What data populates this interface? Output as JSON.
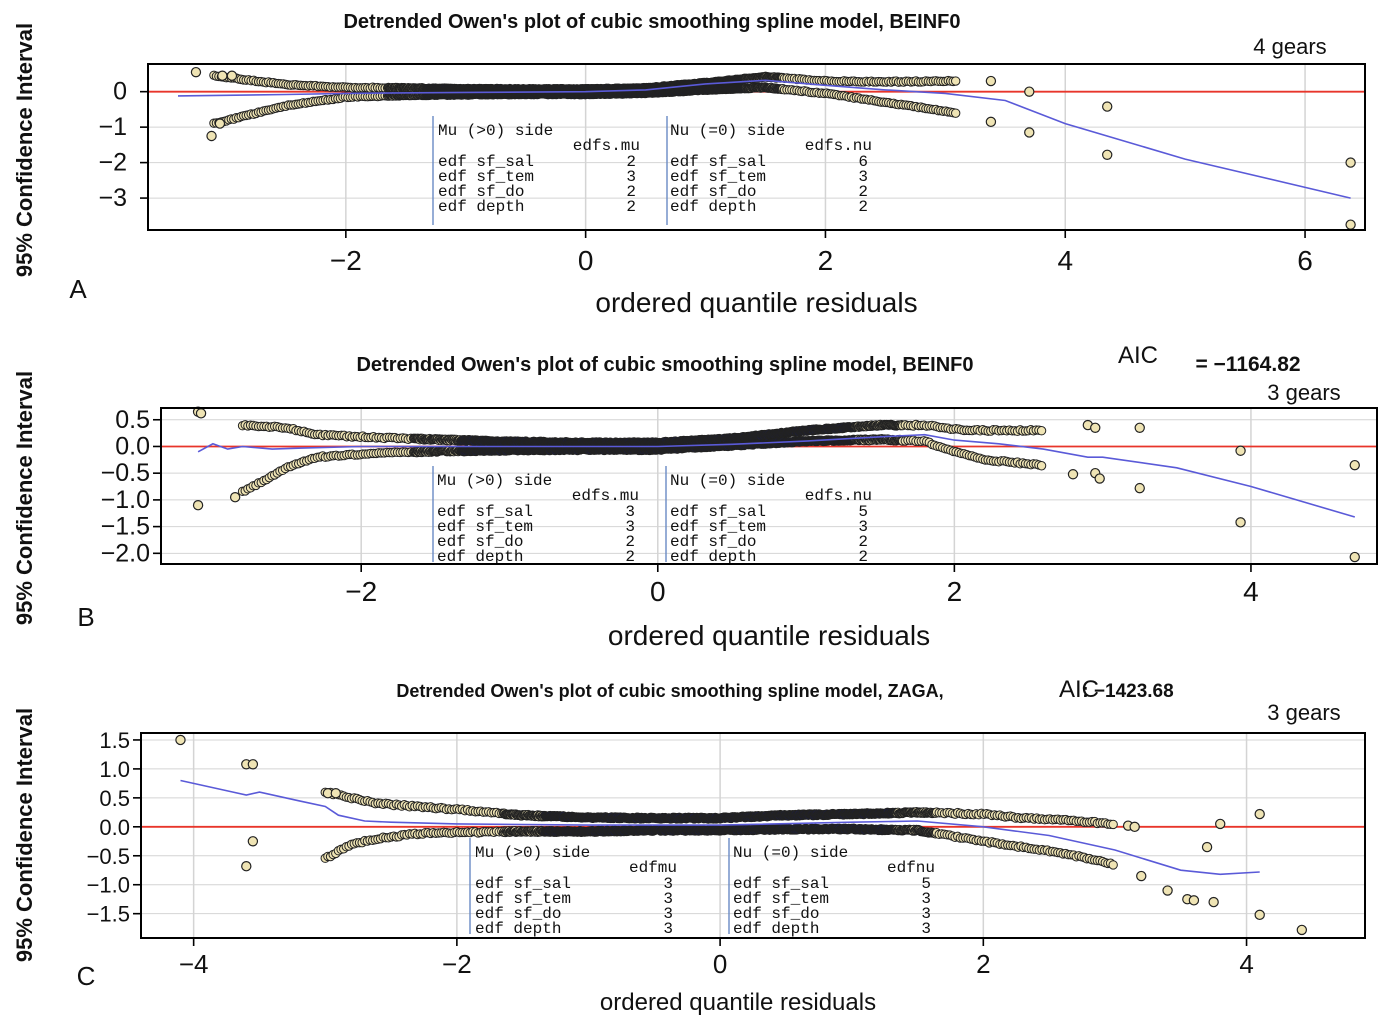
{
  "figure": {
    "ylabel": "95% Confidence Interval",
    "xlabel": "ordered quantile residuals"
  },
  "colors": {
    "zero_line": "#e8352a",
    "worm": "#5a5ad8",
    "dot_fill": "#efe4b4",
    "dot_dense": "#1c1e44",
    "grid": "#d4d4d4",
    "frame": "#000000"
  },
  "panels": [
    {
      "letter": "A",
      "title": "Detrended Owen's plot of cubic smoothing spline model, BEINF0",
      "aic_label": "",
      "aic_value": "",
      "gears": "4 gears",
      "mu_header": "Mu (>0) side",
      "mu_col": "edfs.mu",
      "nu_header": "Nu (=0) side",
      "nu_col": "edfs.nu",
      "table": [
        {
          "term": "edf  sf_sal",
          "mu": "2",
          "nu": "6"
        },
        {
          "term": "edf  sf_tem",
          "mu": "3",
          "nu": "3"
        },
        {
          "term": "edf  sf_do",
          "mu": "2",
          "nu": "2"
        },
        {
          "term": "edf  depth",
          "mu": "2",
          "nu": "2"
        }
      ]
    },
    {
      "letter": "B",
      "title": "Detrended Owen's plot of cubic smoothing spline model, BEINF0",
      "aic_label": "AIC",
      "aic_value": "= −1164.82",
      "gears": "3 gears",
      "mu_header": "Mu (>0) side",
      "mu_col": "edfs.mu",
      "nu_header": "Nu (=0) side",
      "nu_col": "edfs.nu",
      "table": [
        {
          "term": "edf  sf_sal",
          "mu": "3",
          "nu": "5"
        },
        {
          "term": "edf  sf_tem",
          "mu": "3",
          "nu": "3"
        },
        {
          "term": "edf  sf_do",
          "mu": "2",
          "nu": "2"
        },
        {
          "term": "edf  depth",
          "mu": "2",
          "nu": "2"
        }
      ]
    },
    {
      "letter": "C",
      "title": "Detrended Owen's plot of cubic smoothing spline model, ZAGA,",
      "aic_label": "AIC",
      "aic_value": ": −1423.68",
      "gears": "3 gears",
      "mu_header": "Mu (>0) side",
      "mu_col": "edfmu",
      "nu_header": "Nu (=0) side",
      "nu_col": "edfnu",
      "table": [
        {
          "term": "edf  sf_sal",
          "mu": "3",
          "nu": "5"
        },
        {
          "term": "edf  sf_tem",
          "mu": "3",
          "nu": "3"
        },
        {
          "term": "edf  sf_do",
          "mu": "3",
          "nu": "3"
        },
        {
          "term": "edf  depth",
          "mu": "3",
          "nu": "3"
        }
      ]
    }
  ],
  "chart_data": [
    {
      "type": "scatter",
      "panel": "A",
      "xlabel": "ordered quantile residuals",
      "ylabel": "95% Confidence Interval",
      "xlim": [
        -3.65,
        6.5
      ],
      "ylim": [
        -3.9,
        0.78
      ],
      "xticks": [
        -2,
        0,
        2,
        4,
        6
      ],
      "yticks": [
        0,
        -1,
        -2,
        -3
      ],
      "xtick_labels": [
        "−2",
        "0",
        "2",
        "4",
        "6"
      ],
      "ytick_labels": [
        "0",
        "−1",
        "−2",
        "−3"
      ],
      "grid": true,
      "reference_line_y": 0,
      "upper_band": [
        [
          -3.1,
          0.45
        ],
        [
          -2.5,
          0.2
        ],
        [
          -2,
          0.12
        ],
        [
          -1.5,
          0.1
        ],
        [
          -1,
          0.08
        ],
        [
          -0.5,
          0.07
        ],
        [
          0,
          0.07
        ],
        [
          0.5,
          0.1
        ],
        [
          1,
          0.25
        ],
        [
          1.5,
          0.42
        ],
        [
          2,
          0.3
        ],
        [
          2.5,
          0.28
        ],
        [
          3.1,
          0.3
        ]
      ],
      "lower_band": [
        [
          -3.1,
          -0.9
        ],
        [
          -2.5,
          -0.4
        ],
        [
          -2,
          -0.15
        ],
        [
          -1.5,
          -0.1
        ],
        [
          -1,
          -0.08
        ],
        [
          -0.5,
          -0.07
        ],
        [
          0,
          -0.07
        ],
        [
          0.5,
          -0.04
        ],
        [
          1,
          0.05
        ],
        [
          1.5,
          0.12
        ],
        [
          2,
          -0.05
        ],
        [
          2.5,
          -0.3
        ],
        [
          3.1,
          -0.6
        ]
      ],
      "points": [
        [
          -3.25,
          0.55
        ],
        [
          -3.12,
          -1.25
        ],
        [
          -3.05,
          -0.9
        ],
        [
          -3.03,
          0.45
        ],
        [
          -2.95,
          0.45
        ],
        [
          3.38,
          -0.85
        ],
        [
          3.38,
          0.3
        ],
        [
          3.7,
          0.0
        ],
        [
          3.7,
          -1.15
        ],
        [
          4.35,
          -0.42
        ],
        [
          4.35,
          -1.78
        ],
        [
          6.38,
          -2.0
        ],
        [
          6.38,
          -3.75
        ]
      ],
      "worm": [
        [
          -3.4,
          -0.12
        ],
        [
          -2.5,
          -0.08
        ],
        [
          -2,
          -0.05
        ],
        [
          -1,
          -0.02
        ],
        [
          0,
          0
        ],
        [
          0.5,
          0.05
        ],
        [
          1,
          0.22
        ],
        [
          1.5,
          0.32
        ],
        [
          2,
          0.18
        ],
        [
          2.5,
          0.05
        ],
        [
          3,
          -0.05
        ],
        [
          3.5,
          -0.25
        ],
        [
          4,
          -0.9
        ],
        [
          5,
          -1.9
        ],
        [
          6.38,
          -3.0
        ]
      ]
    },
    {
      "type": "scatter",
      "panel": "B",
      "xlabel": "ordered quantile residuals",
      "ylabel": "95% Confidence Interval",
      "xlim": [
        -3.35,
        4.85
      ],
      "ylim": [
        -2.2,
        0.72
      ],
      "xticks": [
        -2,
        0,
        2,
        4
      ],
      "yticks": [
        0.5,
        0.0,
        -0.5,
        -1.0,
        -1.5,
        -2.0
      ],
      "xtick_labels": [
        "−2",
        "0",
        "2",
        "4"
      ],
      "ytick_labels": [
        "0.5",
        "0.0",
        "−0.5",
        "−1.0",
        "−1.5",
        "−2.0"
      ],
      "grid": true,
      "reference_line_y": 0,
      "upper_band": [
        [
          -2.8,
          0.4
        ],
        [
          -2.5,
          0.35
        ],
        [
          -2.3,
          0.22
        ],
        [
          -2,
          0.18
        ],
        [
          -1.5,
          0.13
        ],
        [
          -1,
          0.09
        ],
        [
          -0.5,
          0.07
        ],
        [
          0,
          0.07
        ],
        [
          0.5,
          0.15
        ],
        [
          1,
          0.3
        ],
        [
          1.5,
          0.4
        ],
        [
          1.8,
          0.4
        ],
        [
          2,
          0.32
        ],
        [
          2.2,
          0.3
        ],
        [
          2.6,
          0.3
        ]
      ],
      "lower_band": [
        [
          -2.8,
          -0.85
        ],
        [
          -2.5,
          -0.4
        ],
        [
          -2.3,
          -0.2
        ],
        [
          -2,
          -0.14
        ],
        [
          -1.5,
          -0.09
        ],
        [
          -1,
          -0.07
        ],
        [
          -0.5,
          -0.06
        ],
        [
          0,
          -0.06
        ],
        [
          0.5,
          0.02
        ],
        [
          1,
          0.1
        ],
        [
          1.5,
          0.13
        ],
        [
          1.8,
          0.1
        ],
        [
          2,
          -0.1
        ],
        [
          2.2,
          -0.25
        ],
        [
          2.6,
          -0.35
        ]
      ],
      "points": [
        [
          -3.1,
          0.65
        ],
        [
          -3.08,
          0.62
        ],
        [
          -3.1,
          -1.1
        ],
        [
          -2.85,
          -0.95
        ],
        [
          2.8,
          -0.52
        ],
        [
          2.95,
          -0.5
        ],
        [
          2.98,
          -0.6
        ],
        [
          2.9,
          0.4
        ],
        [
          2.95,
          0.35
        ],
        [
          3.25,
          0.35
        ],
        [
          3.25,
          -0.78
        ],
        [
          3.93,
          -0.08
        ],
        [
          3.93,
          -1.42
        ],
        [
          4.7,
          -0.35
        ],
        [
          4.7,
          -2.07
        ]
      ],
      "worm": [
        [
          -3.1,
          -0.1
        ],
        [
          -3,
          0.05
        ],
        [
          -2.9,
          -0.05
        ],
        [
          -2.8,
          0.0
        ],
        [
          -2.6,
          -0.05
        ],
        [
          -2.4,
          -0.03
        ],
        [
          -2,
          0.0
        ],
        [
          -1,
          0.0
        ],
        [
          0,
          0.0
        ],
        [
          0.5,
          0.04
        ],
        [
          1,
          0.1
        ],
        [
          1.5,
          0.18
        ],
        [
          1.8,
          0.22
        ],
        [
          2,
          0.12
        ],
        [
          2.3,
          0.05
        ],
        [
          2.6,
          -0.05
        ],
        [
          2.9,
          -0.2
        ],
        [
          3,
          -0.2
        ],
        [
          3.5,
          -0.4
        ],
        [
          4,
          -0.75
        ],
        [
          4.7,
          -1.32
        ]
      ]
    },
    {
      "type": "scatter",
      "panel": "C",
      "xlabel": "ordered quantile residuals",
      "ylabel": "95% Confidence Interval",
      "xlim": [
        -4.4,
        4.9
      ],
      "ylim": [
        -1.92,
        1.62
      ],
      "xticks": [
        -4,
        -2,
        0,
        2,
        4
      ],
      "yticks": [
        1.5,
        1.0,
        0.5,
        0.0,
        -0.5,
        -1.0,
        -1.5
      ],
      "xtick_labels": [
        "−4",
        "−2",
        "0",
        "2",
        "4"
      ],
      "ytick_labels": [
        "1.5",
        "1.0",
        "0.5",
        "0.0",
        "−0.5",
        "−1.0",
        "−1.5"
      ],
      "grid": true,
      "reference_line_y": 0,
      "upper_band": [
        [
          -3,
          0.6
        ],
        [
          -2.8,
          0.5
        ],
        [
          -2.6,
          0.4
        ],
        [
          -2.3,
          0.35
        ],
        [
          -2,
          0.3
        ],
        [
          -1.5,
          0.2
        ],
        [
          -1,
          0.16
        ],
        [
          -0.5,
          0.15
        ],
        [
          0,
          0.15
        ],
        [
          0.5,
          0.2
        ],
        [
          1,
          0.22
        ],
        [
          1.5,
          0.25
        ],
        [
          2,
          0.22
        ],
        [
          2.3,
          0.15
        ],
        [
          2.6,
          0.12
        ],
        [
          3,
          0.05
        ]
      ],
      "lower_band": [
        [
          -3,
          -0.55
        ],
        [
          -2.8,
          -0.3
        ],
        [
          -2.6,
          -0.2
        ],
        [
          -2.3,
          -0.12
        ],
        [
          -2,
          -0.1
        ],
        [
          -1.5,
          -0.08
        ],
        [
          -1,
          -0.08
        ],
        [
          -0.5,
          -0.06
        ],
        [
          0,
          -0.06
        ],
        [
          0.5,
          -0.04
        ],
        [
          1,
          -0.04
        ],
        [
          1.5,
          -0.06
        ],
        [
          2,
          -0.25
        ],
        [
          2.3,
          -0.35
        ],
        [
          2.6,
          -0.45
        ],
        [
          3,
          -0.65
        ]
      ],
      "points": [
        [
          -4.1,
          1.5
        ],
        [
          -3.6,
          1.08
        ],
        [
          -3.55,
          1.08
        ],
        [
          -3.55,
          -0.25
        ],
        [
          -3.6,
          -0.68
        ],
        [
          -2.98,
          0.58
        ],
        [
          -2.92,
          0.58
        ],
        [
          3.1,
          0.02
        ],
        [
          3.15,
          0.0
        ],
        [
          3.2,
          -0.85
        ],
        [
          3.4,
          -1.1
        ],
        [
          3.55,
          -1.25
        ],
        [
          3.6,
          -1.27
        ],
        [
          3.75,
          -1.3
        ],
        [
          3.7,
          -0.35
        ],
        [
          3.8,
          0.05
        ],
        [
          4.1,
          0.22
        ],
        [
          4.1,
          -1.52
        ],
        [
          4.42,
          -1.78
        ]
      ],
      "worm": [
        [
          -4.1,
          0.8
        ],
        [
          -3.7,
          0.6
        ],
        [
          -3.6,
          0.55
        ],
        [
          -3.5,
          0.6
        ],
        [
          -3.2,
          0.45
        ],
        [
          -3,
          0.35
        ],
        [
          -2.9,
          0.2
        ],
        [
          -2.7,
          0.1
        ],
        [
          -2.5,
          0.08
        ],
        [
          -2,
          0.05
        ],
        [
          -1,
          0.03
        ],
        [
          0,
          0.03
        ],
        [
          1,
          0.08
        ],
        [
          1.5,
          0.1
        ],
        [
          2,
          0.0
        ],
        [
          2.5,
          -0.15
        ],
        [
          3,
          -0.4
        ],
        [
          3.5,
          -0.75
        ],
        [
          3.8,
          -0.82
        ],
        [
          4.1,
          -0.78
        ]
      ]
    }
  ]
}
